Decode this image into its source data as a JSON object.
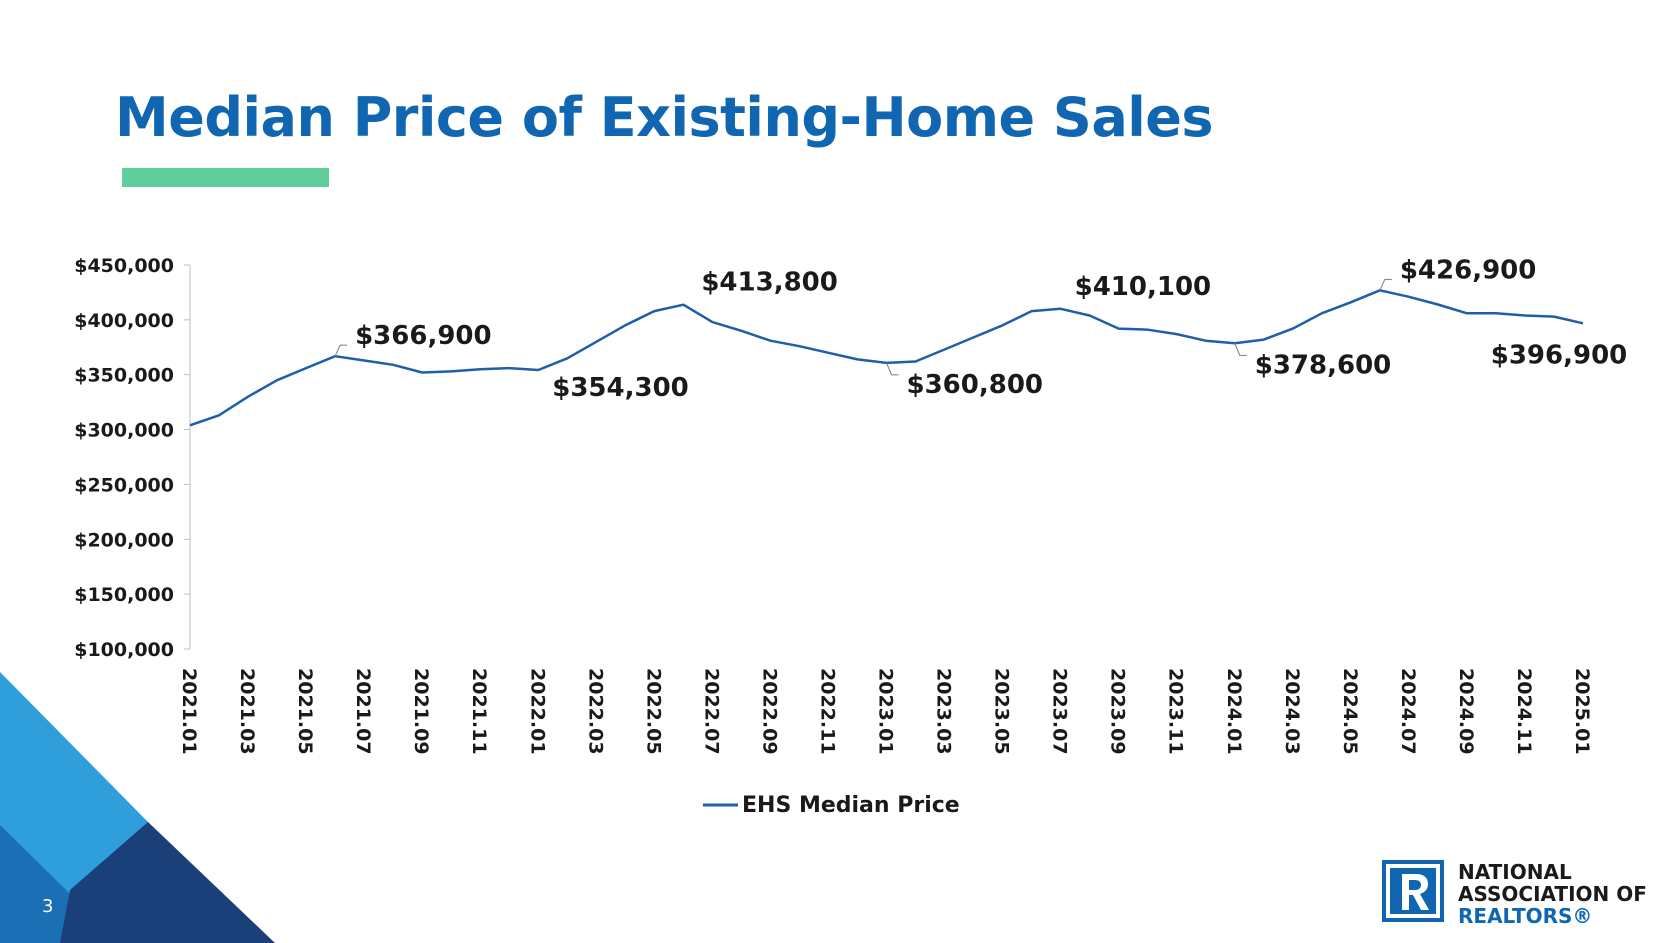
{
  "slide": {
    "title": "Median Price of Existing-Home Sales",
    "page_number": "3",
    "colors": {
      "title": "#1066B0",
      "accent_bar": "#5DCF9C",
      "line": "#1F5FA8",
      "deco_light": "#2E9FDB",
      "deco_mid": "#1A6FB5",
      "deco_dark": "#1B3F78"
    }
  },
  "logo": {
    "icon": "realtor-r-logo-icon",
    "line1": "NATIONAL",
    "line2": "ASSOCIATION OF",
    "line3": "REALTORS®"
  },
  "chart_data": {
    "type": "line",
    "title": "",
    "xlabel": "",
    "ylabel": "",
    "ylim": [
      100000,
      450000
    ],
    "y_ticks": [
      100000,
      150000,
      200000,
      250000,
      300000,
      350000,
      400000,
      450000
    ],
    "y_tick_labels": [
      "$100,000",
      "$150,000",
      "$200,000",
      "$250,000",
      "$300,000",
      "$350,000",
      "$400,000",
      "$450,000"
    ],
    "x_tick_labels": [
      "2021.01",
      "2021.03",
      "2021.05",
      "2021.07",
      "2021.09",
      "2021.11",
      "2022.01",
      "2022.03",
      "2022.05",
      "2022.07",
      "2022.09",
      "2022.11",
      "2023.01",
      "2023.03",
      "2023.05",
      "2023.07",
      "2023.09",
      "2023.11",
      "2024.01",
      "2024.03",
      "2024.05",
      "2024.07",
      "2024.09",
      "2024.11",
      "2025.01"
    ],
    "x_tick_every": 2,
    "grid": false,
    "legend": "bottom",
    "categories": [
      "2021.01",
      "2021.02",
      "2021.03",
      "2021.04",
      "2021.05",
      "2021.06",
      "2021.07",
      "2021.08",
      "2021.09",
      "2021.10",
      "2021.11",
      "2021.12",
      "2022.01",
      "2022.02",
      "2022.03",
      "2022.04",
      "2022.05",
      "2022.06",
      "2022.07",
      "2022.08",
      "2022.09",
      "2022.10",
      "2022.11",
      "2022.12",
      "2023.01",
      "2023.02",
      "2023.03",
      "2023.04",
      "2023.05",
      "2023.06",
      "2023.07",
      "2023.08",
      "2023.09",
      "2023.10",
      "2023.11",
      "2023.12",
      "2024.01",
      "2024.02",
      "2024.03",
      "2024.04",
      "2024.05",
      "2024.06",
      "2024.07",
      "2024.08",
      "2024.09",
      "2024.10",
      "2024.11",
      "2024.12",
      "2025.01"
    ],
    "series": [
      {
        "name": "EHS Median Price",
        "values": [
          303900,
          313000,
          330000,
          345000,
          356000,
          366900,
          363000,
          359000,
          352000,
          353000,
          355000,
          356000,
          354300,
          365000,
          380000,
          395000,
          408000,
          413800,
          398000,
          390000,
          381000,
          376000,
          370000,
          364000,
          360800,
          362000,
          373000,
          384000,
          395000,
          408000,
          410100,
          404000,
          392000,
          391000,
          387000,
          381000,
          378600,
          382000,
          392000,
          406000,
          416000,
          426900,
          421000,
          414000,
          406000,
          406000,
          404000,
          403000,
          396900
        ]
      }
    ],
    "annotations": [
      {
        "index": 5,
        "label": "$366,900"
      },
      {
        "index": 12,
        "label": "$354,300"
      },
      {
        "index": 17,
        "label": "$413,800"
      },
      {
        "index": 24,
        "label": "$360,800"
      },
      {
        "index": 30,
        "label": "$410,100"
      },
      {
        "index": 36,
        "label": "$378,600"
      },
      {
        "index": 41,
        "label": "$426,900"
      },
      {
        "index": 48,
        "label": "$396,900"
      }
    ]
  }
}
